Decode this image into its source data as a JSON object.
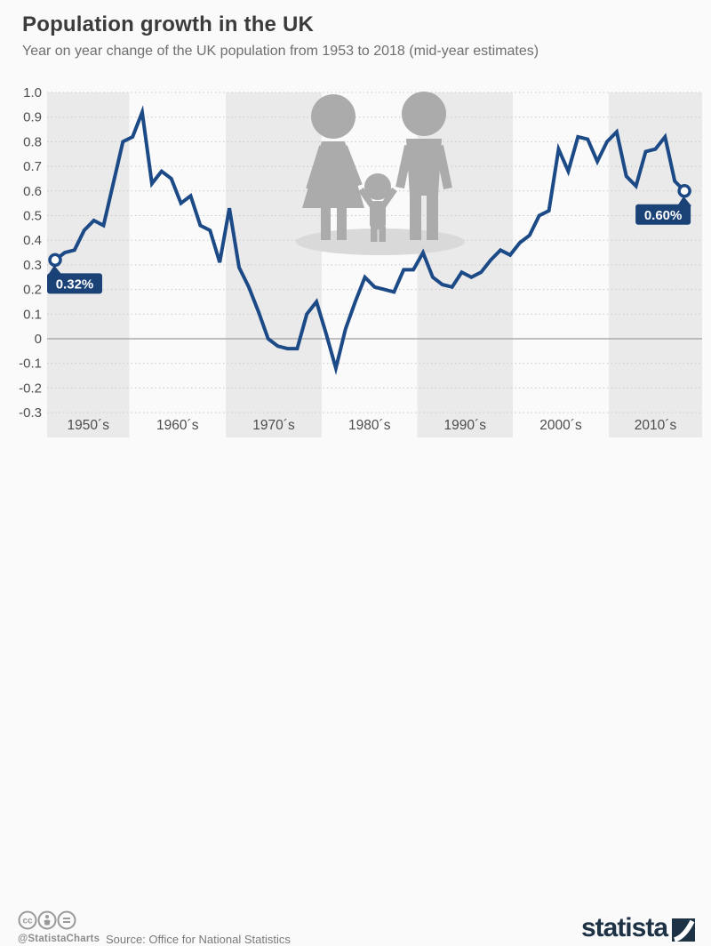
{
  "header": {
    "title": "Population growth in the UK",
    "subtitle": "Year on year change of the UK population from 1953 to 2018 (mid-year estimates)"
  },
  "chart_data": {
    "type": "line",
    "title": "Population growth in the UK",
    "x": [
      1953,
      1954,
      1955,
      1956,
      1957,
      1958,
      1959,
      1960,
      1961,
      1962,
      1963,
      1964,
      1965,
      1966,
      1967,
      1968,
      1969,
      1970,
      1971,
      1972,
      1973,
      1974,
      1975,
      1976,
      1977,
      1978,
      1979,
      1980,
      1981,
      1982,
      1983,
      1984,
      1985,
      1986,
      1987,
      1988,
      1989,
      1990,
      1991,
      1992,
      1993,
      1994,
      1995,
      1996,
      1997,
      1998,
      1999,
      2000,
      2001,
      2002,
      2003,
      2004,
      2005,
      2006,
      2007,
      2008,
      2009,
      2010,
      2011,
      2012,
      2013,
      2014,
      2015,
      2016,
      2017,
      2018
    ],
    "values": [
      0.32,
      0.35,
      0.36,
      0.44,
      0.48,
      0.46,
      0.63,
      0.8,
      0.82,
      0.92,
      0.63,
      0.68,
      0.65,
      0.55,
      0.58,
      0.46,
      0.44,
      0.31,
      0.53,
      0.29,
      0.21,
      0.11,
      0.0,
      -0.03,
      -0.04,
      -0.04,
      0.1,
      0.15,
      0.02,
      -0.12,
      0.04,
      0.15,
      0.25,
      0.21,
      0.2,
      0.19,
      0.28,
      0.28,
      0.35,
      0.25,
      0.22,
      0.21,
      0.27,
      0.25,
      0.27,
      0.32,
      0.36,
      0.34,
      0.39,
      0.42,
      0.5,
      0.52,
      0.77,
      0.68,
      0.82,
      0.81,
      0.72,
      0.8,
      0.84,
      0.66,
      0.62,
      0.76,
      0.77,
      0.82,
      0.64,
      0.6
    ],
    "series_name": "Year on year change of UK population (%)",
    "ylim": [
      -0.3,
      1.0
    ],
    "ytick_labels": [
      "1.0",
      "0.9",
      "0.8",
      "0.7",
      "0.6",
      "0.5",
      "0.4",
      "0.3",
      "0.2",
      "0.1",
      "0",
      "-0.1",
      "-0.2",
      "-0.3"
    ],
    "decade_labels": [
      "1950´s",
      "1960´s",
      "1970´s",
      "1980´s",
      "1990´s",
      "2000´s",
      "2010´s"
    ],
    "grid": "dotted horizontal, zero line solid",
    "legend": "none",
    "annotations": [
      {
        "x": 1953,
        "value": 0.32,
        "label": "0.32%",
        "align": "left"
      },
      {
        "x": 2018,
        "value": 0.6,
        "label": "0.60%",
        "align": "right"
      }
    ],
    "colors": {
      "line": "#1c4a87",
      "badge": "#1b4277",
      "badge_text": "#ffffff",
      "band_shaded": "#eaeaea",
      "gridline": "#c9c9c9",
      "zero_line": "#ababab",
      "tick_text": "#4d4d4d",
      "pictogram": "#ababab",
      "pictogram_shadow": "#d9d9d9"
    }
  },
  "footer": {
    "handle": "@StatistaCharts",
    "source": "Source: Office for National Statistics",
    "brand": "statista",
    "license_icons": [
      "cc-icon",
      "attribution-icon",
      "no-derivatives-icon"
    ]
  }
}
